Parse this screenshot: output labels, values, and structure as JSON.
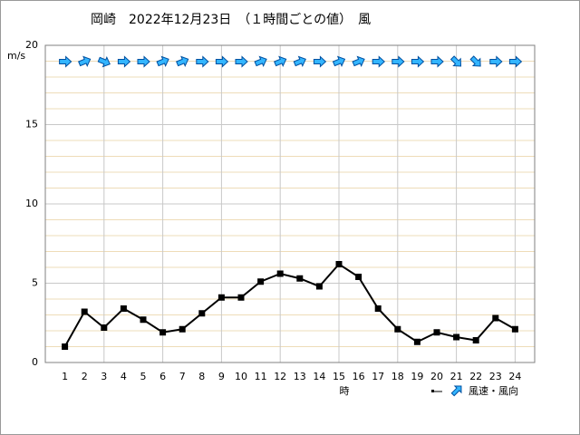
{
  "chart_data": {
    "type": "line",
    "title": "岡崎　2022年12月23日　（１時間ごとの値）　風",
    "y_label": "m/s",
    "x_label": "時",
    "legend_label": "風速・風向",
    "categories": [
      "1",
      "2",
      "3",
      "4",
      "5",
      "6",
      "7",
      "8",
      "9",
      "10",
      "11",
      "12",
      "13",
      "14",
      "15",
      "16",
      "17",
      "18",
      "19",
      "20",
      "21",
      "22",
      "23",
      "24"
    ],
    "series": [
      {
        "name": "風速",
        "color": "#000000",
        "values": [
          1.0,
          3.2,
          2.2,
          3.4,
          2.7,
          1.9,
          2.1,
          3.1,
          4.1,
          4.1,
          5.1,
          5.6,
          5.3,
          4.8,
          6.2,
          5.4,
          3.4,
          2.1,
          1.3,
          1.9,
          1.6,
          1.4,
          2.8,
          2.1
        ]
      }
    ],
    "wind_direction_deg": [
      270,
      247.5,
      292.5,
      270,
      270,
      247.5,
      247.5,
      270,
      270,
      270,
      247.5,
      247.5,
      247.5,
      270,
      247.5,
      247.5,
      270,
      270,
      270,
      270,
      315,
      315,
      270,
      270
    ],
    "arrow_color": "#33b5ff",
    "ylim": [
      0,
      20
    ],
    "yticks": [
      0,
      5,
      10,
      15,
      20
    ],
    "minor_step": 1,
    "grid": true
  }
}
